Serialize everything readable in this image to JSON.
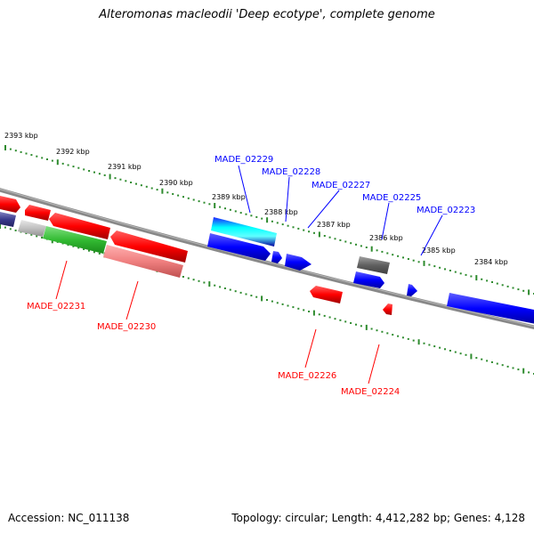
{
  "title": "Alteromonas macleodii 'Deep ecotype', complete genome",
  "accession": "Accession: NC_011138",
  "summary": "Topology: circular; Length: 4,412,282 bp; Genes: 4,128",
  "colors": {
    "forward": "#0000ff",
    "reverse": "#ff0000",
    "backbone": "#808080",
    "ticks": "#2e8b2e"
  },
  "scale_labels": [
    "2393 kbp",
    "2392 kbp",
    "2391 kbp",
    "2390 kbp",
    "2389 kbp",
    "2388 kbp",
    "2387 kbp",
    "2386 kbp",
    "2385 kbp",
    "2384 kbp"
  ],
  "gene_labels": {
    "forward": [
      "MADE_02229",
      "MADE_02228",
      "MADE_02227",
      "MADE_02225",
      "MADE_02223"
    ],
    "reverse": [
      "MADE_02231",
      "MADE_02230",
      "MADE_02226",
      "MADE_02224"
    ]
  }
}
